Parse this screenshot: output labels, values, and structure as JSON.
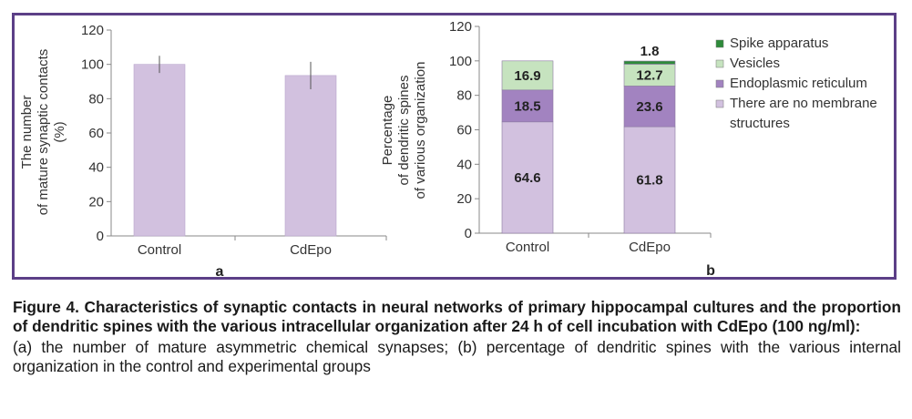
{
  "chart_data": [
    {
      "type": "bar",
      "panel_label": "a",
      "categories": [
        "Control",
        "CdEpo"
      ],
      "values": [
        100,
        93.5
      ],
      "error": [
        5,
        8
      ],
      "ylabel": [
        "The number",
        "of mature synaptic contacts",
        "(%)"
      ],
      "ylim": [
        0,
        120
      ],
      "yticks": [
        0,
        20,
        40,
        60,
        80,
        100,
        120
      ],
      "grid": false,
      "color": "#d2c1df"
    },
    {
      "type": "bar",
      "stacked": true,
      "panel_label": "b",
      "categories": [
        "Control",
        "CdEpo"
      ],
      "ylabel": [
        "Percentage",
        "of dendritic spines",
        "of various organization"
      ],
      "ylim": [
        0,
        120
      ],
      "yticks": [
        0,
        20,
        40,
        60,
        80,
        100,
        120
      ],
      "grid": false,
      "legend_position": "top-right",
      "series": [
        {
          "name": "There are no membrane structures",
          "legend_lines": [
            "There are no membrane",
            "structures"
          ],
          "values": [
            64.6,
            61.8
          ],
          "labels": [
            "64.6",
            "61.8"
          ],
          "color": "#d2c1df"
        },
        {
          "name": "Endoplasmic reticulum",
          "legend_lines": [
            "Endoplasmic reticulum"
          ],
          "values": [
            18.5,
            23.6
          ],
          "labels": [
            "18.5",
            "23.6"
          ],
          "color": "#a283c0"
        },
        {
          "name": "Vesicles",
          "legend_lines": [
            "Vesicles"
          ],
          "values": [
            16.9,
            12.7
          ],
          "labels": [
            "16.9",
            "12.7"
          ],
          "color": "#c6e3bf"
        },
        {
          "name": "Spike apparatus",
          "legend_lines": [
            "Spike apparatus"
          ],
          "values": [
            0,
            1.8
          ],
          "labels": [
            "",
            "1.8"
          ],
          "color": "#2e8b3a"
        }
      ]
    }
  ],
  "caption": {
    "title": "Figure 4. Characteristics of synaptic contacts in neural networks of primary hippocampal cultures and the proportion of dendritic spines with the various intracellular organization after 24 h of cell incubation with CdEpo (100 ng/ml):",
    "body": "(a) the number of mature asymmetric chemical synapses; (b) percentage of dendritic spines with the various internal organization in the control and experimental groups"
  }
}
